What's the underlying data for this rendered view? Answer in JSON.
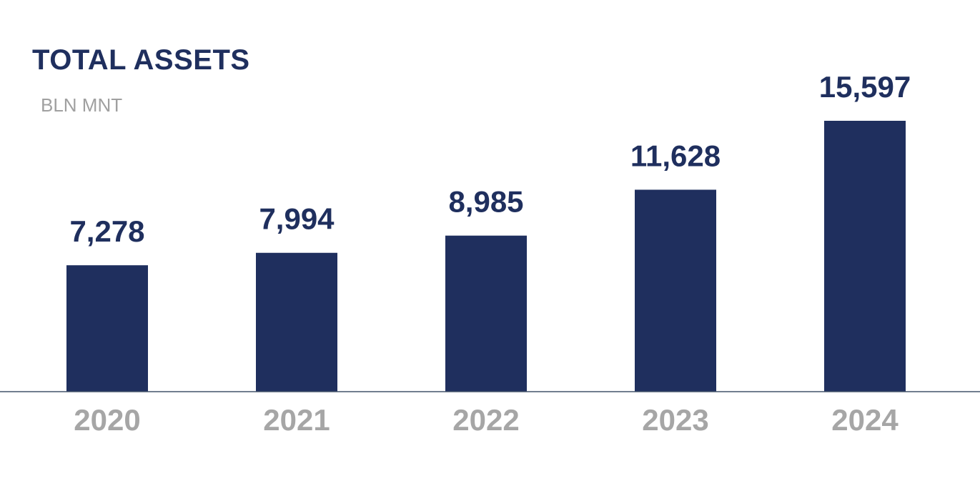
{
  "chart_data": {
    "type": "bar",
    "title": "TOTAL ASSETS",
    "subtitle": "BLN MNT",
    "xlabel": "",
    "ylabel": "",
    "categories": [
      "2020",
      "2021",
      "2022",
      "2023",
      "2024"
    ],
    "values": [
      7278,
      7994,
      8985,
      11628,
      15597
    ],
    "value_labels": [
      "7,278",
      "7,994",
      "8,985",
      "11,628",
      "15,597"
    ],
    "ylim": [
      0,
      18000
    ],
    "grid": false,
    "legend": "none",
    "colors": {
      "bar": "#1f2f5e",
      "value_label": "#1f2f5e",
      "tick_label": "#a6a6a6",
      "axis": "#44546a",
      "title": "#1f2f5e",
      "subtitle": "#a0a0a0"
    }
  }
}
